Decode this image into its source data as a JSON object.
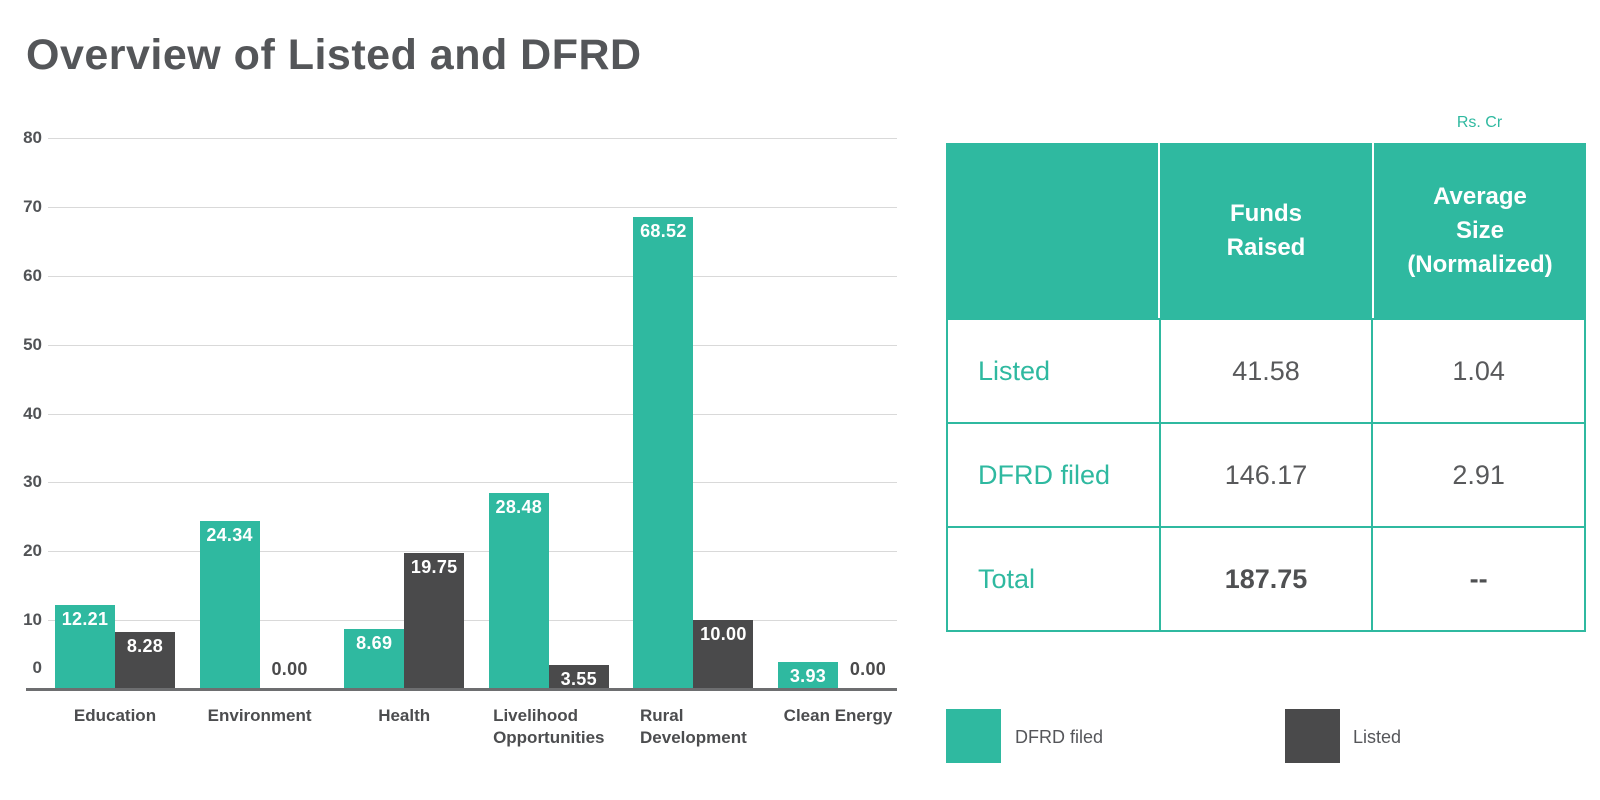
{
  "page": {
    "title": "Overview of Listed and DFRD"
  },
  "colors": {
    "teal": "#2fb9a0",
    "dark": "#4a4a4b",
    "gridline": "#d9d9d9",
    "axis_line": "#6d6e70",
    "title_text": "#545659",
    "body_text": "#58595b"
  },
  "chart_data": {
    "type": "bar",
    "categories": [
      "Education",
      "Environment",
      "Health",
      "Livelihood\nOpportunities",
      "Rural\nDevelopment",
      "Clean Energy"
    ],
    "series": [
      {
        "name": "DFRD filed",
        "color": "#2fb9a0",
        "values": [
          12.21,
          24.34,
          8.69,
          28.48,
          68.52,
          3.93
        ]
      },
      {
        "name": "Listed",
        "color": "#4a4a4b",
        "values": [
          8.28,
          0.0,
          19.75,
          3.55,
          10.0,
          0.0
        ]
      }
    ],
    "ylim": [
      0,
      80
    ],
    "ytick_step": 10,
    "grid": true,
    "value_labels": true,
    "value_label_decimals": 2,
    "legend_position": "bottom-right"
  },
  "table": {
    "unit_note": "Rs. Cr",
    "columns": [
      "",
      "Funds\nRaised",
      "Average\nSize\n(Normalized)"
    ],
    "rows": [
      {
        "label": "Listed",
        "funds": "41.58",
        "avg": "1.04"
      },
      {
        "label": "DFRD filed",
        "funds": "146.17",
        "avg": "2.91"
      },
      {
        "label": "Total",
        "funds": "187.75",
        "avg": "--"
      }
    ]
  },
  "legend": {
    "items": [
      {
        "label": "DFRD filed",
        "color": "#2fb9a0"
      },
      {
        "label": "Listed",
        "color": "#4a4a4b"
      }
    ]
  }
}
